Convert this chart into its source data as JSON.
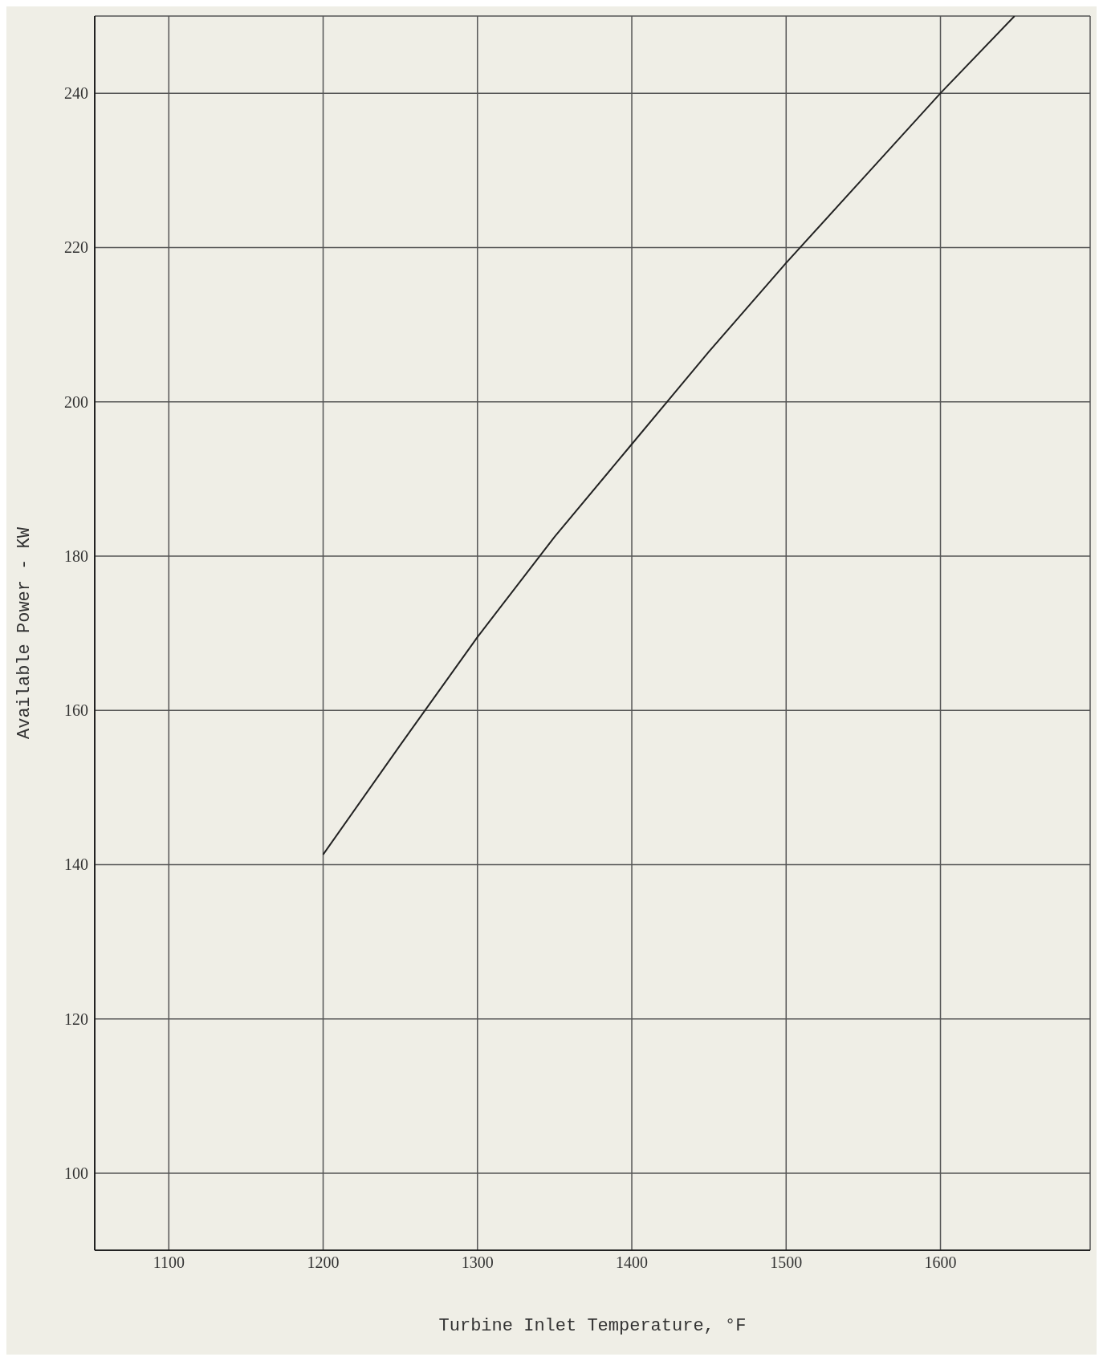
{
  "chart_data": {
    "type": "line",
    "xlabel": "Turbine Inlet Temperature, °F",
    "ylabel": "Available Power - KW",
    "x": [
      1200,
      1250,
      1300,
      1350,
      1400,
      1450,
      1500,
      1550,
      1600,
      1648
    ],
    "series": [
      {
        "color": "#222222",
        "values": [
          141.3,
          155.5,
          169.5,
          182.5,
          194.5,
          206.5,
          218,
          229,
          240,
          250
        ]
      }
    ],
    "xlim": [
      1052,
      1697
    ],
    "ylim": [
      90,
      250
    ],
    "xticks": [
      1100,
      1200,
      1300,
      1400,
      1500,
      1600
    ],
    "yticks": [
      100,
      120,
      140,
      160,
      180,
      200,
      220,
      240
    ],
    "grid": true,
    "legend": false,
    "marker": "none",
    "line_style": "solid"
  }
}
